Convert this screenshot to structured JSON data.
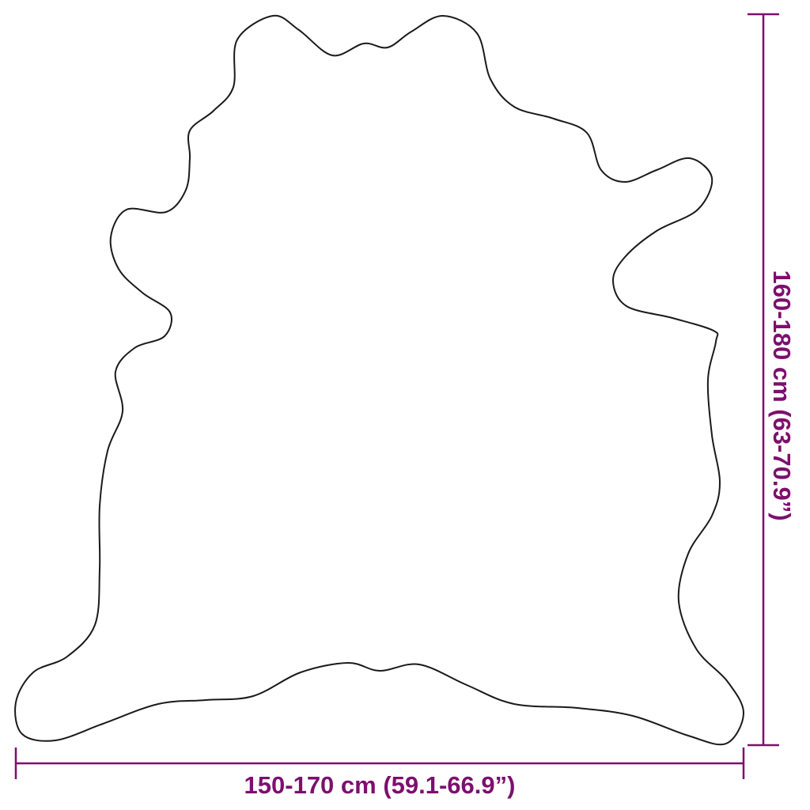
{
  "dimensions": {
    "width_label": "150-170 cm (59.1-66.9”)",
    "height_label": "160-180 cm (63-70.9”)"
  },
  "colors": {
    "dimension": "#7d0f6e",
    "outline": "#1a1a1a"
  }
}
